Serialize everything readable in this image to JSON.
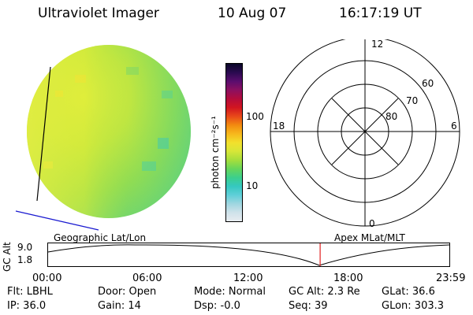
{
  "header": {
    "instrument": "Ultraviolet Imager",
    "date": "10 Aug 07",
    "time": "16:17:19 UT"
  },
  "colorbar": {
    "unit": "photon cm⁻²s⁻¹",
    "tick_labels": [
      "100",
      "10"
    ],
    "colors": [
      "#e8ecf0",
      "#cfe2ea",
      "#9fd6e0",
      "#5fcfd8",
      "#35c8c0",
      "#3ccf8c",
      "#67d65a",
      "#a6de3c",
      "#d7e638",
      "#f2e02c",
      "#f7b81c",
      "#f28a10",
      "#e8481a",
      "#d11520",
      "#b40c3c",
      "#8c1060",
      "#5a0d6e",
      "#2a0a50",
      "#0a0828"
    ]
  },
  "polar": {
    "mlt_labels": [
      "12",
      "18",
      "6",
      "0"
    ],
    "lat_labels": [
      "60",
      "70",
      "80"
    ]
  },
  "timeline": {
    "ylabel": "GC Alt",
    "yticks": [
      "9.0",
      "1.8"
    ],
    "left_title": "Geographic Lat/Lon",
    "right_title": "Apex  MLat/MLT",
    "xticks": [
      "00:00",
      "06:00",
      "12:00",
      "18:00",
      "23:59"
    ],
    "current_time_fraction": 0.678
  },
  "footer": {
    "row1": [
      "Flt: LBHL",
      "Door: Open",
      "Mode: Normal",
      "GC Alt: 2.3 Re",
      "GLat:  36.6"
    ],
    "row2": [
      "IP: 36.0",
      "Gain: 14",
      "Dsp:   -0.0",
      "Seq: 39",
      "GLon: 303.3"
    ]
  }
}
